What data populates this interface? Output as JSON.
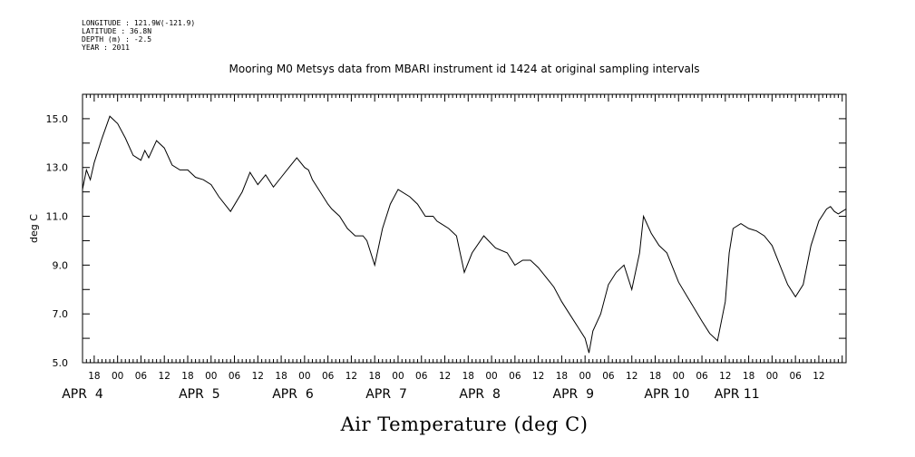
{
  "meta": [
    {
      "label": "LONGITUDE",
      "value": "121.9W(-121.9)"
    },
    {
      "label": "LATITUDE",
      "value": "36.8N"
    },
    {
      "label": "DEPTH (m)",
      "value": "-2.5"
    },
    {
      "label": "YEAR",
      "value": "2011"
    }
  ],
  "chart_data": {
    "type": "line",
    "title": "Mooring M0 Metsys data from MBARI instrument id 1424 at original sampling intervals",
    "xlabel": "Air Temperature (deg C)",
    "ylabel": "deg C",
    "ylim": [
      5.0,
      16.0
    ],
    "xlim": [
      "2011-04-03 15:00",
      "2011-04-11 19:00"
    ],
    "grid": false,
    "y_ticks": [
      "5.0",
      "7.0",
      "9.0",
      "11.0",
      "13.0",
      "15.0"
    ],
    "x_hour_labels": [
      "18",
      "00",
      "06",
      "12",
      "18",
      "00",
      "06",
      "12",
      "18",
      "00",
      "06",
      "12",
      "18",
      "00",
      "06",
      "12",
      "18",
      "00",
      "06",
      "12",
      "18",
      "00",
      "06",
      "12",
      "18",
      "00",
      "06",
      "12",
      "18",
      "00",
      "06",
      "12"
    ],
    "x_day_labels": [
      "APR  4",
      "APR  5",
      "APR  6",
      "APR  7",
      "APR  8",
      "APR  9",
      "APR 10",
      "APR 11"
    ],
    "series": [
      {
        "x": [
          "2011-04-03 15:00",
          "2011-04-03 16:00",
          "2011-04-03 17:00",
          "2011-04-03 18:00",
          "2011-04-03 20:00",
          "2011-04-03 22:00",
          "2011-04-04 00:00",
          "2011-04-04 02:00",
          "2011-04-04 04:00",
          "2011-04-04 06:00",
          "2011-04-04 07:00",
          "2011-04-04 08:00",
          "2011-04-04 10:00",
          "2011-04-04 12:00",
          "2011-04-04 14:00",
          "2011-04-04 16:00",
          "2011-04-04 18:00",
          "2011-04-04 20:00",
          "2011-04-04 22:00",
          "2011-04-05 00:00",
          "2011-04-05 02:00",
          "2011-04-05 05:00",
          "2011-04-05 08:00",
          "2011-04-05 10:00",
          "2011-04-05 12:00",
          "2011-04-05 14:00",
          "2011-04-05 16:00",
          "2011-04-05 18:00",
          "2011-04-05 20:00",
          "2011-04-05 22:00",
          "2011-04-06 00:00",
          "2011-04-06 01:00",
          "2011-04-06 02:00",
          "2011-04-06 04:00",
          "2011-04-06 06:00",
          "2011-04-06 07:00",
          "2011-04-06 09:00",
          "2011-04-06 11:00",
          "2011-04-06 13:00",
          "2011-04-06 15:00",
          "2011-04-06 16:00",
          "2011-04-06 18:00",
          "2011-04-06 20:00",
          "2011-04-06 22:00",
          "2011-04-07 00:00",
          "2011-04-07 03:00",
          "2011-04-07 05:00",
          "2011-04-07 07:00",
          "2011-04-07 09:00",
          "2011-04-07 10:00",
          "2011-04-07 11:00",
          "2011-04-07 13:00",
          "2011-04-07 15:00",
          "2011-04-07 17:00",
          "2011-04-07 19:00",
          "2011-04-07 22:00",
          "2011-04-08 01:00",
          "2011-04-08 04:00",
          "2011-04-08 06:00",
          "2011-04-08 08:00",
          "2011-04-08 10:00",
          "2011-04-08 12:00",
          "2011-04-08 14:00",
          "2011-04-08 15:00",
          "2011-04-08 16:00",
          "2011-04-08 18:00",
          "2011-04-08 20:00",
          "2011-04-08 22:00",
          "2011-04-09 00:00",
          "2011-04-09 01:00",
          "2011-04-09 02:00",
          "2011-04-09 04:00",
          "2011-04-09 06:00",
          "2011-04-09 08:00",
          "2011-04-09 10:00",
          "2011-04-09 12:00",
          "2011-04-09 14:00",
          "2011-04-09 15:00",
          "2011-04-09 17:00",
          "2011-04-09 19:00",
          "2011-04-09 21:00",
          "2011-04-10 00:00",
          "2011-04-10 03:00",
          "2011-04-10 06:00",
          "2011-04-10 08:00",
          "2011-04-10 10:00",
          "2011-04-10 12:00",
          "2011-04-10 13:00",
          "2011-04-10 14:00",
          "2011-04-10 16:00",
          "2011-04-10 18:00",
          "2011-04-10 20:00",
          "2011-04-10 22:00",
          "2011-04-11 00:00",
          "2011-04-11 02:00",
          "2011-04-11 04:00",
          "2011-04-11 06:00",
          "2011-04-11 08:00",
          "2011-04-11 10:00",
          "2011-04-11 12:00",
          "2011-04-11 14:00",
          "2011-04-11 15:00",
          "2011-04-11 16:00",
          "2011-04-11 17:00",
          "2011-04-11 18:00",
          "2011-04-11 19:00"
        ],
        "values": [
          12.1,
          12.9,
          12.5,
          13.2,
          14.2,
          15.1,
          14.8,
          14.2,
          13.5,
          13.3,
          13.7,
          13.4,
          14.1,
          13.8,
          13.1,
          12.9,
          12.9,
          12.6,
          12.5,
          12.3,
          11.8,
          11.2,
          12.0,
          12.8,
          12.3,
          12.7,
          12.2,
          12.6,
          13.0,
          13.4,
          13.0,
          12.9,
          12.5,
          12.0,
          11.5,
          11.3,
          11.0,
          10.5,
          10.2,
          10.2,
          10.0,
          9.0,
          10.5,
          11.5,
          12.1,
          11.8,
          11.5,
          11.0,
          11.0,
          10.8,
          10.7,
          10.5,
          10.2,
          8.7,
          9.5,
          10.2,
          9.7,
          9.5,
          9.0,
          9.2,
          9.2,
          8.9,
          8.5,
          8.3,
          8.1,
          7.5,
          7.0,
          6.5,
          6.0,
          5.4,
          6.3,
          7.0,
          8.2,
          8.7,
          9.0,
          8.0,
          9.5,
          11.0,
          10.3,
          9.8,
          9.5,
          8.3,
          7.5,
          6.7,
          6.2,
          5.9,
          7.5,
          9.5,
          10.5,
          10.7,
          10.5,
          10.4,
          10.2,
          9.8,
          9.0,
          8.2,
          7.7,
          8.2,
          9.8,
          10.8,
          11.3,
          11.4,
          11.2,
          11.1,
          11.2,
          11.3
        ]
      }
    ]
  }
}
